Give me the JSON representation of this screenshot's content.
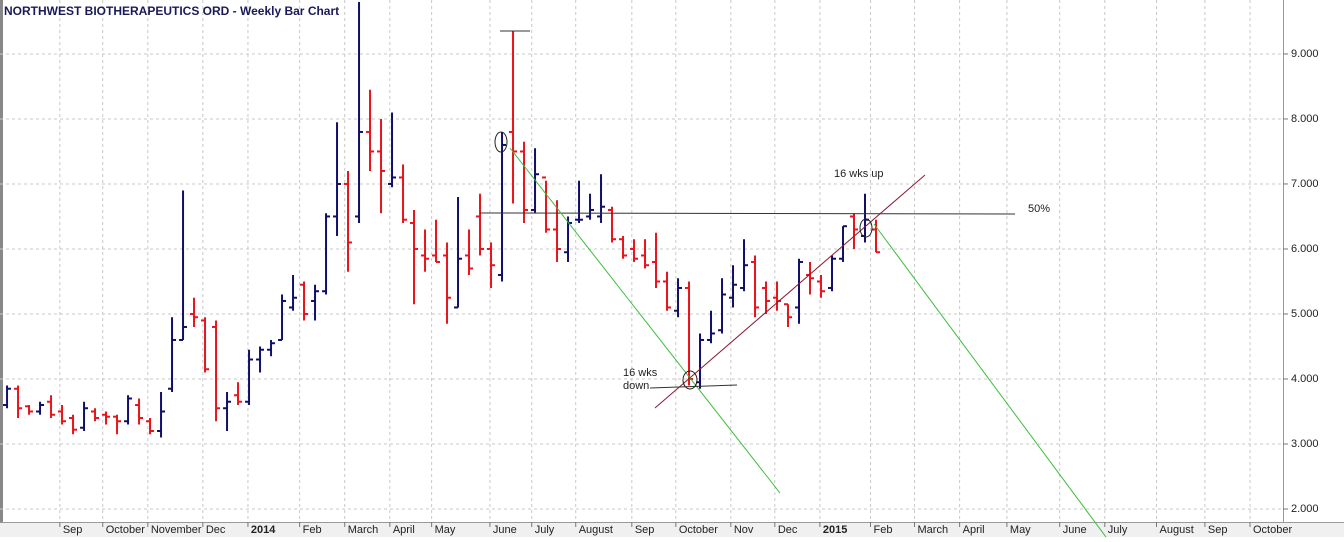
{
  "chart_data": {
    "type": "ohlc",
    "title": "NORTHWEST BIOTHERAPEUTICS ORD - Weekly Bar Chart",
    "up_color": "#10106a",
    "down_color": "#e8141b",
    "grid": true,
    "ylim": [
      1.8,
      9.83
    ],
    "yticks": [
      {
        "value": 2,
        "label": "2.000"
      },
      {
        "value": 3,
        "label": "3.000"
      },
      {
        "value": 4,
        "label": "4.000"
      },
      {
        "value": 5,
        "label": "5.000"
      },
      {
        "value": 6,
        "label": "6.000"
      },
      {
        "value": 7,
        "label": "7.000"
      },
      {
        "value": 8,
        "label": "8.000"
      },
      {
        "value": 9,
        "label": "9.000"
      }
    ],
    "xlim": [
      -0.64,
      116
    ],
    "xticks": [
      {
        "value": 4.8,
        "label": "Sep"
      },
      {
        "value": 8.7,
        "label": "October"
      },
      {
        "value": 12.8,
        "label": "November"
      },
      {
        "value": 17.8,
        "label": "Dec"
      },
      {
        "value": 21.9,
        "label": "2014"
      },
      {
        "value": 26.6,
        "label": "Feb"
      },
      {
        "value": 30.7,
        "label": "March"
      },
      {
        "value": 34.8,
        "label": "April"
      },
      {
        "value": 38.6,
        "label": "May"
      },
      {
        "value": 43.9,
        "label": "June"
      },
      {
        "value": 47.7,
        "label": "July"
      },
      {
        "value": 51.7,
        "label": "August"
      },
      {
        "value": 56.8,
        "label": "Sep"
      },
      {
        "value": 60.8,
        "label": "October"
      },
      {
        "value": 65.8,
        "label": "Nov"
      },
      {
        "value": 69.8,
        "label": "Dec"
      },
      {
        "value": 73.9,
        "label": "2015"
      },
      {
        "value": 78.5,
        "label": "Feb"
      },
      {
        "value": 82.5,
        "label": "March"
      },
      {
        "value": 86.6,
        "label": "April"
      },
      {
        "value": 90.9,
        "label": "May"
      },
      {
        "value": 95.7,
        "label": "June"
      },
      {
        "value": 99.8,
        "label": "July"
      },
      {
        "value": 104.5,
        "label": "August"
      },
      {
        "value": 108.9,
        "label": "Sep"
      },
      {
        "value": 113,
        "label": "October"
      }
    ],
    "open": [
      3.6,
      3.85,
      3.58,
      3.5,
      3.65,
      3.5,
      3.4,
      3.25,
      3.5,
      3.45,
      3.42,
      3.35,
      3.6,
      3.35,
      3.2,
      3.85,
      4.6,
      5.0,
      4.9,
      4.8,
      3.55,
      3.75,
      3.65,
      4.3,
      4.45,
      4.6,
      5.1,
      5.45,
      5.2,
      5.35,
      6.5,
      7.0,
      6.5,
      7.8,
      7.5,
      7.0,
      7.1,
      6.4,
      5.9,
      5.9,
      5.9,
      5.1,
      5.9,
      6.5,
      6.0,
      5.6,
      7.8,
      7.5,
      6.6,
      7.1,
      6.3,
      5.95,
      6.45,
      6.5,
      6.5,
      6.6,
      6.15,
      6.0,
      5.9,
      5.8,
      5.5,
      5.05,
      5.4,
      3.95,
      4.6,
      4.75,
      5.25,
      5.4,
      5.8,
      5.4,
      5.25,
      5.15,
      5.1,
      5.6,
      5.5,
      5.4,
      5.85,
      6.5,
      6.2,
      6.3
    ],
    "high": [
      3.9,
      3.9,
      3.6,
      3.65,
      3.75,
      3.6,
      3.45,
      3.65,
      3.55,
      3.5,
      3.45,
      3.75,
      3.7,
      3.4,
      3.8,
      4.95,
      6.9,
      5.25,
      4.95,
      4.9,
      3.8,
      3.95,
      4.45,
      4.5,
      4.6,
      5.3,
      5.6,
      5.5,
      5.45,
      6.55,
      7.95,
      7.2,
      9.8,
      8.45,
      8.0,
      8.1,
      7.3,
      6.6,
      6.3,
      6.45,
      6.1,
      6.8,
      6.3,
      6.85,
      6.1,
      7.8,
      9.35,
      7.65,
      7.55,
      7.05,
      6.75,
      6.5,
      7.05,
      6.85,
      7.15,
      6.65,
      6.2,
      6.15,
      6.15,
      6.25,
      5.65,
      5.55,
      5.5,
      4.7,
      5.05,
      5.55,
      5.75,
      6.15,
      5.9,
      5.5,
      5.5,
      5.15,
      5.85,
      5.8,
      5.6,
      5.9,
      6.35,
      6.55,
      6.85,
      6.45
    ],
    "low": [
      3.55,
      3.4,
      3.45,
      3.45,
      3.4,
      3.3,
      3.15,
      3.2,
      3.35,
      3.3,
      3.15,
      3.3,
      3.3,
      3.15,
      3.1,
      3.8,
      4.6,
      4.8,
      4.1,
      3.35,
      3.2,
      3.6,
      3.6,
      4.1,
      4.35,
      4.6,
      5.05,
      4.9,
      4.9,
      5.3,
      6.2,
      5.65,
      6.4,
      7.2,
      6.55,
      6.95,
      6.4,
      5.15,
      5.65,
      5.8,
      4.85,
      5.1,
      5.6,
      5.9,
      5.4,
      5.5,
      6.7,
      6.4,
      6.55,
      6.25,
      5.8,
      5.8,
      6.4,
      6.45,
      6.4,
      6.1,
      5.85,
      5.8,
      5.7,
      5.4,
      5.05,
      4.95,
      3.9,
      3.85,
      4.55,
      4.7,
      5.1,
      5.35,
      4.95,
      5.0,
      5.05,
      4.8,
      4.85,
      5.3,
      5.25,
      5.35,
      5.8,
      6.0,
      6.1,
      5.95
    ],
    "close": [
      3.85,
      3.55,
      3.5,
      3.6,
      3.45,
      3.35,
      3.22,
      3.55,
      3.4,
      3.42,
      3.35,
      3.7,
      3.4,
      3.2,
      3.5,
      4.6,
      4.8,
      4.95,
      4.15,
      3.55,
      3.65,
      3.65,
      4.3,
      4.45,
      4.55,
      5.2,
      5.25,
      5.0,
      5.35,
      6.5,
      7.0,
      6.1,
      7.8,
      7.5,
      7.2,
      7.1,
      6.45,
      6.0,
      5.85,
      5.8,
      5.25,
      5.85,
      5.7,
      6.0,
      5.75,
      7.6,
      7.5,
      6.6,
      7.15,
      6.3,
      6.0,
      6.4,
      6.45,
      6.6,
      6.65,
      6.15,
      5.9,
      5.85,
      5.75,
      5.5,
      5.1,
      5.4,
      4.0,
      4.6,
      4.7,
      5.3,
      5.45,
      5.75,
      5.1,
      5.2,
      5.2,
      4.95,
      5.8,
      5.55,
      5.35,
      5.85,
      6.35,
      6.3,
      6.45,
      5.95
    ],
    "annotations": [
      "16 wks up",
      "50%",
      "16 wks",
      "down"
    ]
  }
}
